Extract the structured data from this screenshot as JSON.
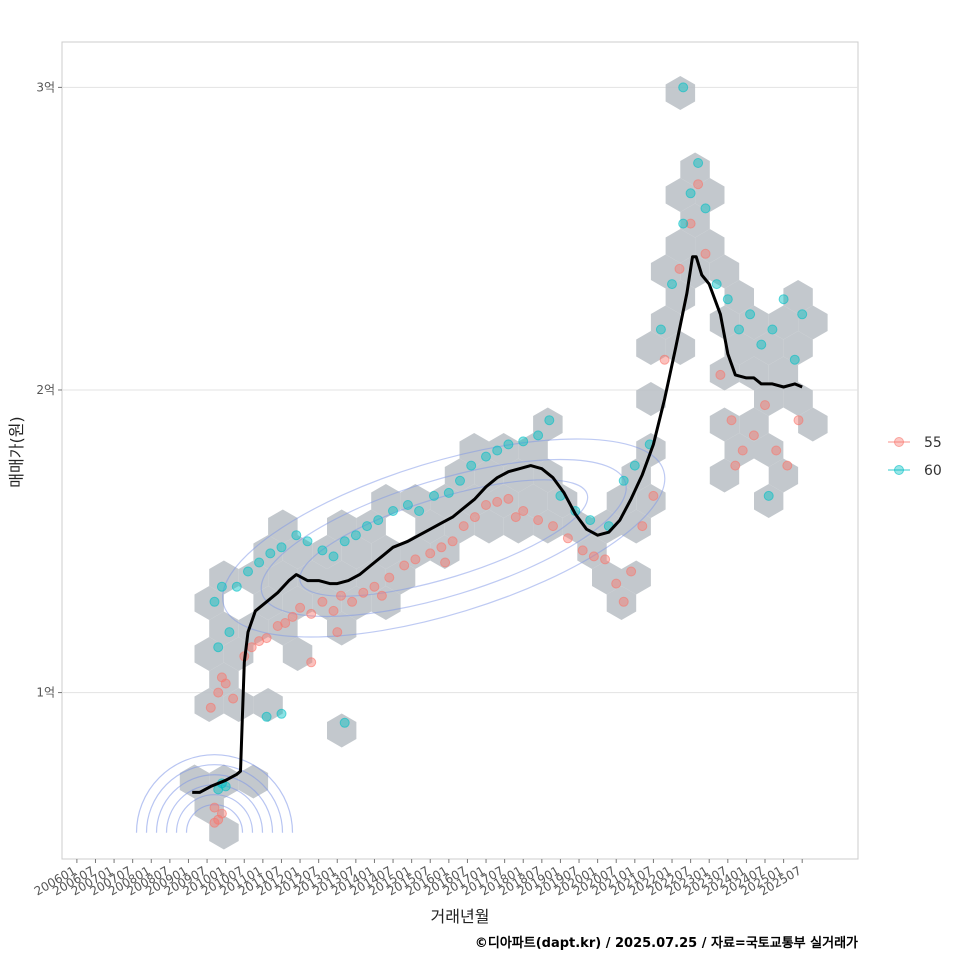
{
  "chart_data": {
    "type": "scatter",
    "xlabel": "거래년월",
    "ylabel": "매매가(원)",
    "caption": "©디아파트(dapt.kr) / 2025.07.25 / 자료=국토교통부 실거래가",
    "x_ticks": [
      "200601",
      "200607",
      "200701",
      "200707",
      "200801",
      "200807",
      "200901",
      "200907",
      "201001",
      "201007",
      "201101",
      "201107",
      "201201",
      "201207",
      "201301",
      "201307",
      "201401",
      "201407",
      "201501",
      "201507",
      "201601",
      "201607",
      "201701",
      "201707",
      "201801",
      "201807",
      "201901",
      "201907",
      "202001",
      "202007",
      "202101",
      "202107",
      "202201",
      "202207",
      "202301",
      "202307",
      "202401",
      "202407",
      "202501",
      "202507"
    ],
    "y_ticks": [
      {
        "value": 1.0,
        "label": "1억"
      },
      {
        "value": 2.0,
        "label": "2억"
      },
      {
        "value": 3.0,
        "label": "3억"
      }
    ],
    "ylim": [
      0.45,
      3.15
    ],
    "xlim": [
      2005.6,
      2027.0
    ],
    "grid": "horizontal",
    "legend": {
      "position": "right",
      "entries": [
        {
          "name": "55",
          "color": "#F8766D"
        },
        {
          "name": "60",
          "color": "#00BFC4"
        }
      ]
    },
    "trend_line": {
      "name": "moving average",
      "color": "#000000",
      "points": [
        [
          2009.1,
          0.67
        ],
        [
          2009.3,
          0.67
        ],
        [
          2009.6,
          0.69
        ],
        [
          2010.0,
          0.71
        ],
        [
          2010.3,
          0.73
        ],
        [
          2010.4,
          0.74
        ],
        [
          2010.5,
          1.1
        ],
        [
          2010.6,
          1.2
        ],
        [
          2010.8,
          1.27
        ],
        [
          2011.1,
          1.3
        ],
        [
          2011.4,
          1.33
        ],
        [
          2011.7,
          1.37
        ],
        [
          2011.9,
          1.39
        ],
        [
          2012.2,
          1.37
        ],
        [
          2012.5,
          1.37
        ],
        [
          2012.8,
          1.36
        ],
        [
          2013.0,
          1.36
        ],
        [
          2013.3,
          1.37
        ],
        [
          2013.6,
          1.39
        ],
        [
          2013.9,
          1.42
        ],
        [
          2014.2,
          1.45
        ],
        [
          2014.5,
          1.48
        ],
        [
          2014.9,
          1.5
        ],
        [
          2015.2,
          1.52
        ],
        [
          2015.5,
          1.54
        ],
        [
          2015.8,
          1.56
        ],
        [
          2016.1,
          1.58
        ],
        [
          2016.4,
          1.61
        ],
        [
          2016.7,
          1.64
        ],
        [
          2017.0,
          1.68
        ],
        [
          2017.3,
          1.71
        ],
        [
          2017.6,
          1.73
        ],
        [
          2017.9,
          1.74
        ],
        [
          2018.2,
          1.75
        ],
        [
          2018.5,
          1.74
        ],
        [
          2018.8,
          1.71
        ],
        [
          2019.1,
          1.66
        ],
        [
          2019.4,
          1.59
        ],
        [
          2019.7,
          1.54
        ],
        [
          2020.0,
          1.52
        ],
        [
          2020.3,
          1.53
        ],
        [
          2020.6,
          1.57
        ],
        [
          2020.9,
          1.64
        ],
        [
          2021.2,
          1.72
        ],
        [
          2021.5,
          1.82
        ],
        [
          2021.8,
          1.97
        ],
        [
          2022.1,
          2.14
        ],
        [
          2022.4,
          2.32
        ],
        [
          2022.55,
          2.44
        ],
        [
          2022.65,
          2.44
        ],
        [
          2022.8,
          2.38
        ],
        [
          2023.0,
          2.35
        ],
        [
          2023.3,
          2.25
        ],
        [
          2023.5,
          2.12
        ],
        [
          2023.7,
          2.05
        ],
        [
          2024.0,
          2.04
        ],
        [
          2024.2,
          2.04
        ],
        [
          2024.4,
          2.02
        ],
        [
          2024.7,
          2.02
        ],
        [
          2025.0,
          2.01
        ],
        [
          2025.3,
          2.02
        ],
        [
          2025.5,
          2.01
        ]
      ]
    },
    "series": [
      {
        "name": "55",
        "color": "#F8766D",
        "points": [
          [
            2009.7,
            0.57
          ],
          [
            2009.8,
            0.58
          ],
          [
            2009.9,
            0.6
          ],
          [
            2009.7,
            0.62
          ],
          [
            2009.6,
            0.95
          ],
          [
            2009.8,
            1.0
          ],
          [
            2009.9,
            1.05
          ],
          [
            2010.0,
            1.03
          ],
          [
            2010.2,
            0.98
          ],
          [
            2010.5,
            1.12
          ],
          [
            2010.7,
            1.15
          ],
          [
            2010.9,
            1.17
          ],
          [
            2011.1,
            1.18
          ],
          [
            2011.4,
            1.22
          ],
          [
            2011.8,
            1.25
          ],
          [
            2012.0,
            1.28
          ],
          [
            2012.3,
            1.26
          ],
          [
            2012.6,
            1.3
          ],
          [
            2012.9,
            1.27
          ],
          [
            2013.1,
            1.32
          ],
          [
            2013.4,
            1.3
          ],
          [
            2013.7,
            1.33
          ],
          [
            2014.0,
            1.35
          ],
          [
            2014.4,
            1.38
          ],
          [
            2014.8,
            1.42
          ],
          [
            2015.1,
            1.44
          ],
          [
            2015.5,
            1.46
          ],
          [
            2015.8,
            1.48
          ],
          [
            2016.1,
            1.5
          ],
          [
            2016.4,
            1.55
          ],
          [
            2016.7,
            1.58
          ],
          [
            2017.0,
            1.62
          ],
          [
            2017.3,
            1.63
          ],
          [
            2017.6,
            1.64
          ],
          [
            2018.0,
            1.6
          ],
          [
            2018.4,
            1.57
          ],
          [
            2018.8,
            1.55
          ],
          [
            2019.2,
            1.51
          ],
          [
            2019.6,
            1.47
          ],
          [
            2019.9,
            1.45
          ],
          [
            2020.2,
            1.44
          ],
          [
            2020.5,
            1.36
          ],
          [
            2020.7,
            1.3
          ],
          [
            2020.9,
            1.4
          ],
          [
            2021.2,
            1.55
          ],
          [
            2021.5,
            1.65
          ],
          [
            2021.8,
            2.1
          ],
          [
            2022.2,
            2.4
          ],
          [
            2022.5,
            2.55
          ],
          [
            2022.7,
            2.68
          ],
          [
            2022.9,
            2.45
          ],
          [
            2023.3,
            2.05
          ],
          [
            2023.6,
            1.9
          ],
          [
            2023.9,
            1.8
          ],
          [
            2024.2,
            1.85
          ],
          [
            2024.5,
            1.95
          ],
          [
            2024.8,
            1.8
          ],
          [
            2025.1,
            1.75
          ],
          [
            2025.4,
            1.9
          ],
          [
            2012.3,
            1.1
          ],
          [
            2013.0,
            1.2
          ],
          [
            2011.6,
            1.23
          ],
          [
            2014.2,
            1.32
          ],
          [
            2015.9,
            1.43
          ],
          [
            2017.8,
            1.58
          ],
          [
            2023.7,
            1.75
          ]
        ]
      },
      {
        "name": "60",
        "color": "#00BFC4",
        "points": [
          [
            2009.8,
            0.68
          ],
          [
            2009.9,
            0.7
          ],
          [
            2010.0,
            0.69
          ],
          [
            2009.7,
            1.3
          ],
          [
            2009.9,
            1.35
          ],
          [
            2010.1,
            1.2
          ],
          [
            2010.3,
            1.35
          ],
          [
            2010.6,
            1.4
          ],
          [
            2010.9,
            1.43
          ],
          [
            2011.2,
            1.46
          ],
          [
            2011.5,
            1.48
          ],
          [
            2011.9,
            1.52
          ],
          [
            2012.2,
            1.5
          ],
          [
            2012.6,
            1.47
          ],
          [
            2012.9,
            1.45
          ],
          [
            2013.2,
            1.5
          ],
          [
            2013.5,
            1.52
          ],
          [
            2013.8,
            1.55
          ],
          [
            2014.1,
            1.57
          ],
          [
            2014.5,
            1.6
          ],
          [
            2014.9,
            1.62
          ],
          [
            2015.2,
            1.6
          ],
          [
            2015.6,
            1.65
          ],
          [
            2016.0,
            1.66
          ],
          [
            2016.3,
            1.7
          ],
          [
            2016.6,
            1.75
          ],
          [
            2017.0,
            1.78
          ],
          [
            2017.3,
            1.8
          ],
          [
            2017.6,
            1.82
          ],
          [
            2018.0,
            1.83
          ],
          [
            2018.4,
            1.85
          ],
          [
            2018.7,
            1.9
          ],
          [
            2019.0,
            1.65
          ],
          [
            2019.4,
            1.6
          ],
          [
            2019.8,
            1.57
          ],
          [
            2020.3,
            1.55
          ],
          [
            2020.7,
            1.7
          ],
          [
            2021.0,
            1.75
          ],
          [
            2021.4,
            1.82
          ],
          [
            2021.7,
            2.2
          ],
          [
            2022.0,
            2.35
          ],
          [
            2022.3,
            2.55
          ],
          [
            2022.5,
            2.65
          ],
          [
            2022.7,
            2.75
          ],
          [
            2022.3,
            3.0
          ],
          [
            2022.9,
            2.6
          ],
          [
            2023.2,
            2.35
          ],
          [
            2023.5,
            2.3
          ],
          [
            2023.8,
            2.2
          ],
          [
            2024.1,
            2.25
          ],
          [
            2024.4,
            2.15
          ],
          [
            2024.7,
            2.2
          ],
          [
            2025.0,
            2.3
          ],
          [
            2025.3,
            2.1
          ],
          [
            2025.5,
            2.25
          ],
          [
            2024.6,
            1.65
          ],
          [
            2011.1,
            0.92
          ],
          [
            2011.5,
            0.93
          ],
          [
            2013.2,
            0.9
          ],
          [
            2009.8,
            1.15
          ]
        ]
      }
    ]
  }
}
